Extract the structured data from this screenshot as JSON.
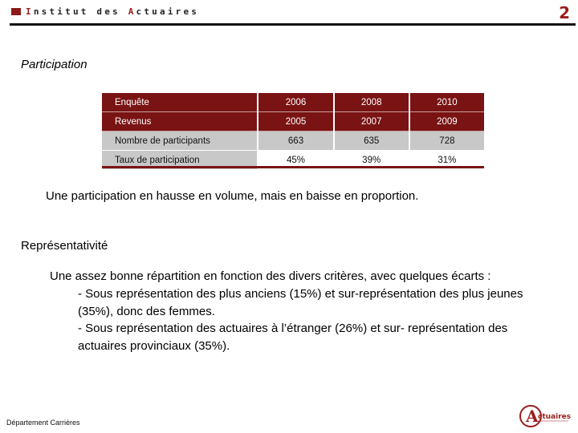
{
  "header": {
    "brand_prefix_initial": "I",
    "brand_prefix_rest": "nstitut des ",
    "brand_accent_initial": "A",
    "brand_accent_rest": "ctuaires",
    "page_number": "2",
    "accent_color": "#9b1c1c"
  },
  "sections": {
    "participation_title": "Participation",
    "summary": "Une participation en hausse en volume, mais en baisse en proportion.",
    "representativite_title": "Représentativité",
    "intro": "Une assez bonne répartition en fonction des divers critères, avec quelques écarts :",
    "bullet1": "- Sous représentation des plus anciens (15%) et sur-représentation des plus jeunes (35%), donc des femmes.",
    "bullet2": "- Sous représentation des actuaires à l’étranger (26%) et sur- représentation des actuaires provinciaux (35%)."
  },
  "table": {
    "rows": [
      {
        "label": "Enquête",
        "values": [
          "2006",
          "2008",
          "2010"
        ]
      },
      {
        "label": "Revenus",
        "values": [
          "2005",
          "2007",
          "2009"
        ]
      },
      {
        "label": "Nombre de participants",
        "values": [
          "663",
          "635",
          "728"
        ]
      },
      {
        "label": "Taux de participation",
        "values": [
          "45%",
          "39%",
          "31%"
        ]
      }
    ],
    "colors": {
      "dark": "#7a1414",
      "grey": "#c8c8c8"
    }
  },
  "footer": {
    "department": "Département Carrières"
  },
  "logo": {
    "text": "ctuaires",
    "initial": "A"
  }
}
